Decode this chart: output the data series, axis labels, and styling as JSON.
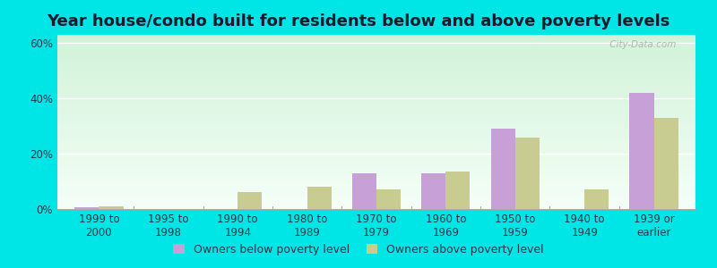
{
  "title": "Year house/condo built for residents below and above poverty levels",
  "categories": [
    "1999 to\n2000",
    "1995 to\n1998",
    "1990 to\n1994",
    "1980 to\n1989",
    "1970 to\n1979",
    "1960 to\n1969",
    "1950 to\n1959",
    "1940 to\n1949",
    "1939 or\nearlier"
  ],
  "below_poverty": [
    0.5,
    0.0,
    0.0,
    0.0,
    13.0,
    13.0,
    29.0,
    0.0,
    42.0
  ],
  "above_poverty": [
    1.0,
    0.0,
    6.0,
    8.0,
    7.0,
    13.5,
    26.0,
    7.0,
    33.0
  ],
  "below_color": "#c8a0d8",
  "above_color": "#c8cc90",
  "bg_color": "#00e5e5",
  "ylim": [
    0,
    63
  ],
  "yticks": [
    0,
    20,
    40,
    60
  ],
  "bar_width": 0.35,
  "title_fontsize": 13,
  "tick_fontsize": 8.5,
  "legend_fontsize": 9,
  "watermark": " City-Data.com"
}
